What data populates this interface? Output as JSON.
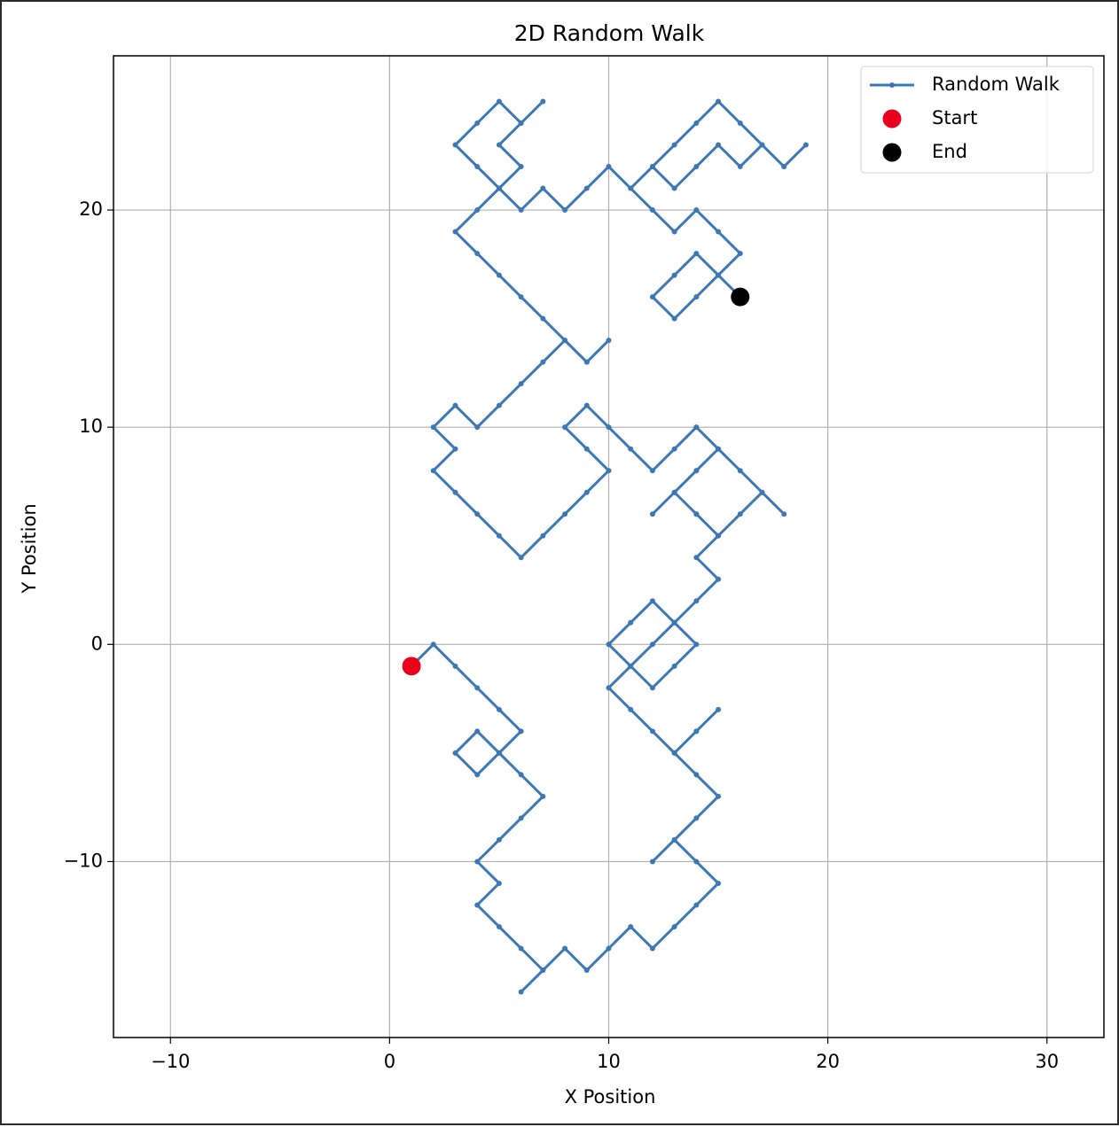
{
  "chart_data": {
    "type": "line",
    "title": "2D Random Walk",
    "x_label": "X Position",
    "y_label": "Y Position",
    "xlim": [
      -12.6,
      32.6
    ],
    "ylim": [
      -18.1,
      27.1
    ],
    "xticks": [
      {
        "value": -10,
        "label": "−10"
      },
      0,
      10,
      20,
      30
    ],
    "yticks": [
      {
        "value": -10,
        "label": "−10"
      },
      0,
      10,
      20
    ],
    "grid": true,
    "legend": "upper right",
    "series": [
      {
        "name": "Random Walk",
        "color": "#3d78b5",
        "x": [
          1,
          2,
          3,
          4,
          5,
          6,
          5,
          4,
          3,
          4,
          5,
          6,
          7,
          6,
          5,
          4,
          5,
          4,
          5,
          6,
          7,
          6,
          7,
          8,
          9,
          10,
          11,
          12,
          13,
          14,
          15,
          14,
          13,
          12,
          13,
          14,
          15,
          14,
          13,
          14,
          15,
          14,
          13,
          12,
          11,
          10,
          11,
          12,
          13,
          14,
          13,
          12,
          11,
          10,
          11,
          12,
          13,
          14,
          15,
          14,
          15,
          14,
          13,
          14,
          15,
          16,
          17,
          18,
          17,
          16,
          15,
          14,
          13,
          12,
          13,
          14,
          15,
          14,
          13,
          12,
          11,
          10,
          9,
          8,
          9,
          10,
          9,
          8,
          7,
          6,
          5,
          4,
          3,
          2,
          3,
          2,
          3,
          4,
          5,
          6,
          7,
          8,
          9,
          10,
          9,
          8,
          7,
          6,
          5,
          4,
          3,
          4,
          5,
          6,
          5,
          6,
          7,
          6,
          5,
          4,
          3,
          4,
          5,
          6,
          7,
          8,
          9,
          10,
          11,
          12,
          13,
          14,
          15,
          16,
          17,
          18,
          19,
          18,
          17,
          16,
          15,
          14,
          13,
          12,
          11,
          12,
          13,
          14,
          15,
          16,
          15,
          14,
          13,
          12,
          13,
          14,
          15,
          16
        ],
        "y": [
          -1,
          0,
          -1,
          -2,
          -3,
          -4,
          -5,
          -6,
          -5,
          -4,
          -5,
          -6,
          -7,
          -8,
          -9,
          -10,
          -11,
          -12,
          -13,
          -14,
          -15,
          -16,
          -15,
          -14,
          -15,
          -14,
          -13,
          -14,
          -13,
          -12,
          -11,
          -10,
          -9,
          -10,
          -9,
          -8,
          -7,
          -6,
          -5,
          -4,
          -3,
          -4,
          -5,
          -4,
          -3,
          -2,
          -1,
          0,
          1,
          0,
          -1,
          -2,
          -1,
          0,
          1,
          2,
          1,
          2,
          3,
          4,
          5,
          6,
          7,
          8,
          9,
          8,
          7,
          6,
          7,
          6,
          5,
          6,
          7,
          6,
          7,
          8,
          9,
          10,
          9,
          8,
          9,
          10,
          11,
          10,
          9,
          8,
          7,
          6,
          5,
          4,
          5,
          6,
          7,
          8,
          9,
          10,
          11,
          10,
          11,
          12,
          13,
          14,
          13,
          14,
          13,
          14,
          15,
          16,
          17,
          18,
          19,
          20,
          21,
          22,
          23,
          24,
          25,
          24,
          25,
          24,
          23,
          22,
          21,
          20,
          21,
          20,
          21,
          22,
          21,
          22,
          21,
          22,
          23,
          22,
          23,
          22,
          23,
          22,
          23,
          24,
          25,
          24,
          23,
          22,
          21,
          20,
          19,
          20,
          19,
          18,
          17,
          18,
          17,
          16,
          15,
          16,
          17,
          16
        ]
      },
      {
        "name": "Start",
        "color": "#e8001c",
        "x": [
          1
        ],
        "y": [
          -1
        ]
      },
      {
        "name": "End",
        "color": "#000000",
        "x": [
          16
        ],
        "y": [
          16
        ]
      }
    ]
  }
}
